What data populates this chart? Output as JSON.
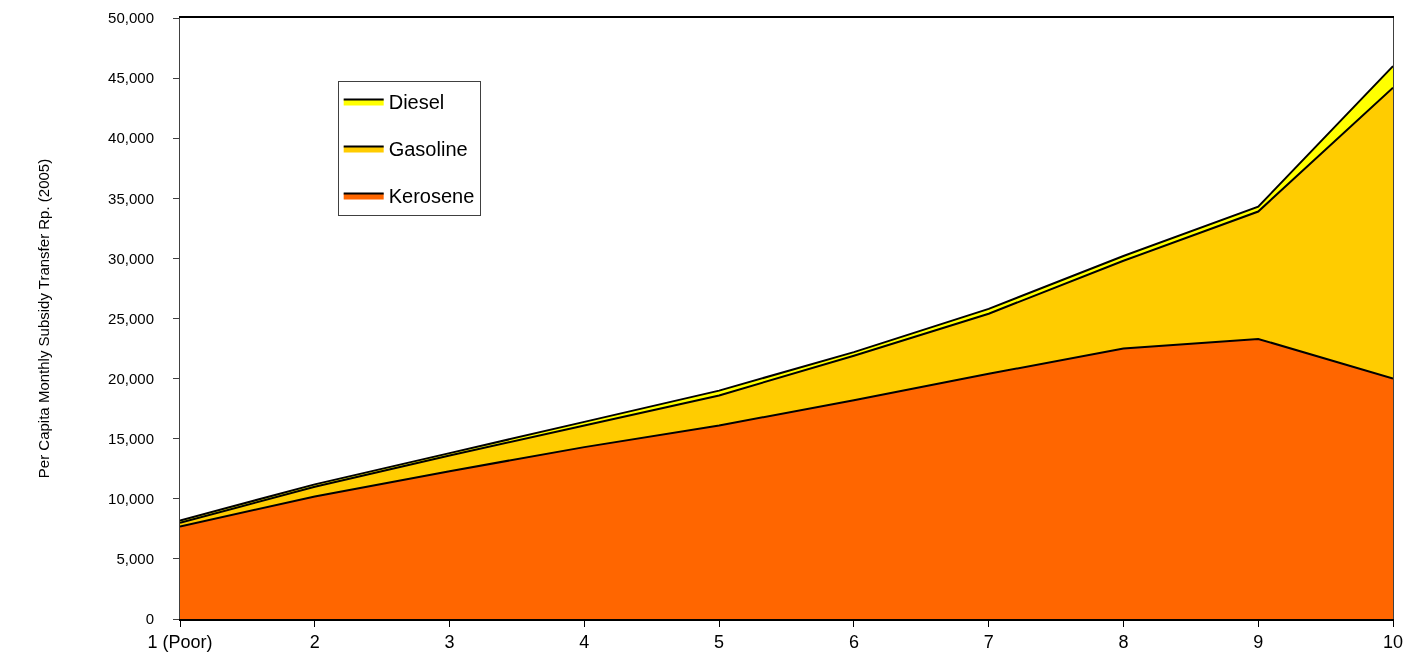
{
  "chart_data": {
    "type": "area",
    "stacked": true,
    "ylabel": "Per Capita Monthly Subsidy Transfer Rp. (2005)",
    "categories": [
      "1 (Poor)",
      "2",
      "3",
      "4",
      "5",
      "6",
      "7",
      "8",
      "9",
      "10"
    ],
    "series": [
      {
        "name": "Kerosene",
        "color": "#ff6600",
        "values": [
          7700,
          10200,
          12300,
          14300,
          16100,
          18200,
          20400,
          22500,
          23300,
          20000
        ]
      },
      {
        "name": "Gasoline",
        "color": "#ffcc00",
        "values": [
          300,
          800,
          1300,
          1800,
          2500,
          3700,
          5000,
          7300,
          10600,
          24200
        ]
      },
      {
        "name": "Diesel",
        "color": "#ffff00",
        "values": [
          200,
          200,
          200,
          300,
          400,
          300,
          400,
          400,
          400,
          1800
        ]
      }
    ],
    "ylim": [
      0,
      50000
    ],
    "yticks": [
      0,
      {
        "value": 5000,
        "label": "5,000"
      },
      {
        "value": 10000,
        "label": "10,000"
      },
      {
        "value": 15000,
        "label": "15,000"
      },
      {
        "value": 20000,
        "label": "20,000"
      },
      {
        "value": 25000,
        "label": "25,000"
      },
      {
        "value": 30000,
        "label": "30,000"
      },
      {
        "value": 35000,
        "label": "35,000"
      },
      {
        "value": 40000,
        "label": "40,000"
      },
      {
        "value": 45000,
        "label": "45,000"
      },
      {
        "value": 50000,
        "label": "50,000"
      }
    ],
    "grid": false,
    "legend": "top left"
  }
}
